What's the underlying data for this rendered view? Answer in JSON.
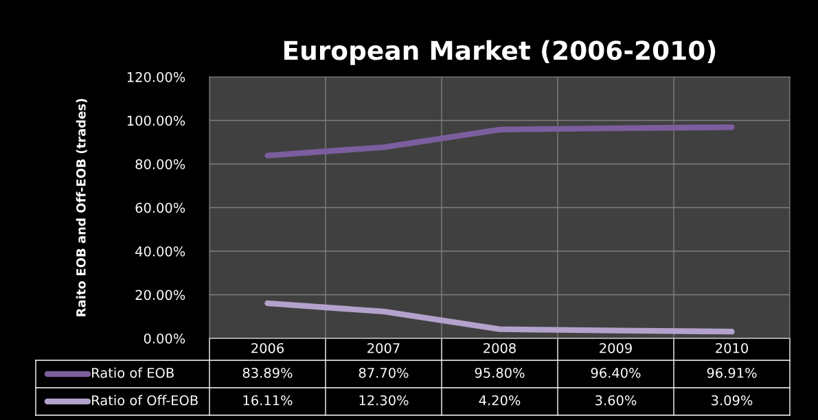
{
  "chart_data": {
    "type": "line",
    "title": "European Market (2006-2010)",
    "ylabel": "Raito EOB and Off-EOB (trades)",
    "categories": [
      "2006",
      "2007",
      "2008",
      "2009",
      "2010"
    ],
    "series": [
      {
        "name": "Ratio of EOB",
        "color": "#7b5e9e",
        "values": [
          83.89,
          87.7,
          95.8,
          96.4,
          96.91
        ],
        "value_labels": [
          "83.89%",
          "87.70%",
          "95.80%",
          "96.40%",
          "96.91%"
        ]
      },
      {
        "name": "Ratio of Off-EOB",
        "color": "#b3a2cc",
        "values": [
          16.11,
          12.3,
          4.2,
          3.6,
          3.09
        ],
        "value_labels": [
          "16.11%",
          "12.30%",
          "4.20%",
          "3.60%",
          "3.09%"
        ]
      }
    ],
    "ylim": [
      0,
      120
    ],
    "yticks": [
      {
        "value": 0,
        "label": "0.00%"
      },
      {
        "value": 20,
        "label": "20.00%"
      },
      {
        "value": 40,
        "label": "40.00%"
      },
      {
        "value": 60,
        "label": "60.00%"
      },
      {
        "value": 80,
        "label": "80.00%"
      },
      {
        "value": 100,
        "label": "100.00%"
      },
      {
        "value": 120,
        "label": "120.00%"
      }
    ],
    "grid": true,
    "legend": "bottom left",
    "marker": "none",
    "line_style": "solid"
  }
}
